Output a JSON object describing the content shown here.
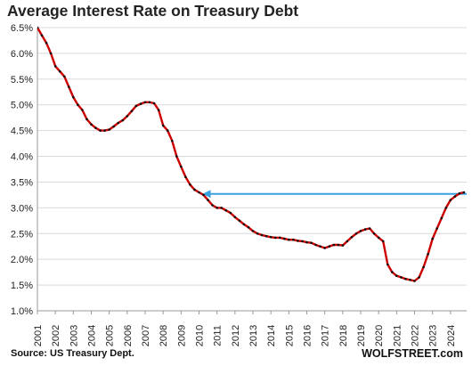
{
  "chart_data": {
    "type": "line",
    "title": "Average Interest Rate on Treasury Debt",
    "source": "Source: US Treasury Dept.",
    "brand": "WOLFSTREET.com",
    "x_ticks": [
      "2001",
      "2002",
      "2003",
      "2004",
      "2005",
      "2006",
      "2007",
      "2008",
      "2009",
      "2010",
      "2011",
      "2012",
      "2013",
      "2014",
      "2015",
      "2016",
      "2017",
      "2018",
      "2019",
      "2020",
      "2021",
      "2022",
      "2023",
      "2024"
    ],
    "y_ticks": [
      "1.0%",
      "1.5%",
      "2.0%",
      "2.5%",
      "3.0%",
      "3.5%",
      "4.0%",
      "4.5%",
      "5.0%",
      "5.5%",
      "6.0%",
      "6.5%"
    ],
    "xlim": [
      2001,
      2024.9
    ],
    "ylim": [
      1.0,
      6.5
    ],
    "grid": "horizontal",
    "colors": {
      "line": "#cc0000",
      "markers": "#111111",
      "reference": "#3aa0e0",
      "grid": "#d9d9d9",
      "axis": "#999999"
    },
    "series": [
      {
        "x": [
          2001.0,
          2001.25,
          2001.5,
          2001.75,
          2002.0,
          2002.25,
          2002.5,
          2002.75,
          2003.0,
          2003.25,
          2003.5,
          2003.75,
          2004.0,
          2004.25,
          2004.5,
          2004.75,
          2005.0,
          2005.25,
          2005.5,
          2005.75,
          2006.0,
          2006.25,
          2006.5,
          2006.75,
          2007.0,
          2007.25,
          2007.5,
          2007.75,
          2008.0,
          2008.25,
          2008.5,
          2008.75,
          2009.0,
          2009.25,
          2009.5,
          2009.75,
          2010.0,
          2010.25,
          2010.5,
          2010.75,
          2011.0,
          2011.25,
          2011.5,
          2011.75,
          2012.0,
          2012.25,
          2012.5,
          2012.75,
          2013.0,
          2013.25,
          2013.5,
          2013.75,
          2014.0,
          2014.25,
          2014.5,
          2014.75,
          2015.0,
          2015.25,
          2015.5,
          2015.75,
          2016.0,
          2016.25,
          2016.5,
          2016.75,
          2017.0,
          2017.25,
          2017.5,
          2017.75,
          2018.0,
          2018.25,
          2018.5,
          2018.75,
          2019.0,
          2019.25,
          2019.5,
          2019.75,
          2020.0,
          2020.25,
          2020.5,
          2020.75,
          2021.0,
          2021.25,
          2021.5,
          2021.75,
          2022.0,
          2022.25,
          2022.5,
          2022.75,
          2023.0,
          2023.25,
          2023.5,
          2023.75,
          2024.0,
          2024.25,
          2024.5,
          2024.75
        ],
        "y": [
          6.5,
          6.35,
          6.2,
          6.0,
          5.75,
          5.65,
          5.55,
          5.35,
          5.15,
          5.0,
          4.9,
          4.72,
          4.62,
          4.55,
          4.5,
          4.5,
          4.52,
          4.58,
          4.65,
          4.7,
          4.78,
          4.88,
          4.98,
          5.02,
          5.05,
          5.05,
          5.03,
          4.9,
          4.6,
          4.5,
          4.3,
          4.0,
          3.8,
          3.6,
          3.45,
          3.35,
          3.3,
          3.25,
          3.15,
          3.05,
          3.0,
          3.0,
          2.95,
          2.9,
          2.82,
          2.75,
          2.68,
          2.62,
          2.55,
          2.5,
          2.47,
          2.45,
          2.43,
          2.42,
          2.42,
          2.4,
          2.38,
          2.38,
          2.36,
          2.35,
          2.33,
          2.32,
          2.28,
          2.25,
          2.22,
          2.25,
          2.28,
          2.28,
          2.27,
          2.35,
          2.43,
          2.5,
          2.55,
          2.58,
          2.6,
          2.5,
          2.42,
          2.35,
          1.9,
          1.75,
          1.68,
          1.65,
          1.62,
          1.6,
          1.58,
          1.65,
          1.85,
          2.1,
          2.4,
          2.6,
          2.8,
          3.0,
          3.15,
          3.22,
          3.28,
          3.3
        ]
      }
    ],
    "reference": {
      "y": 3.27,
      "x_from": 2010.2,
      "x_to": 2024.9
    }
  }
}
